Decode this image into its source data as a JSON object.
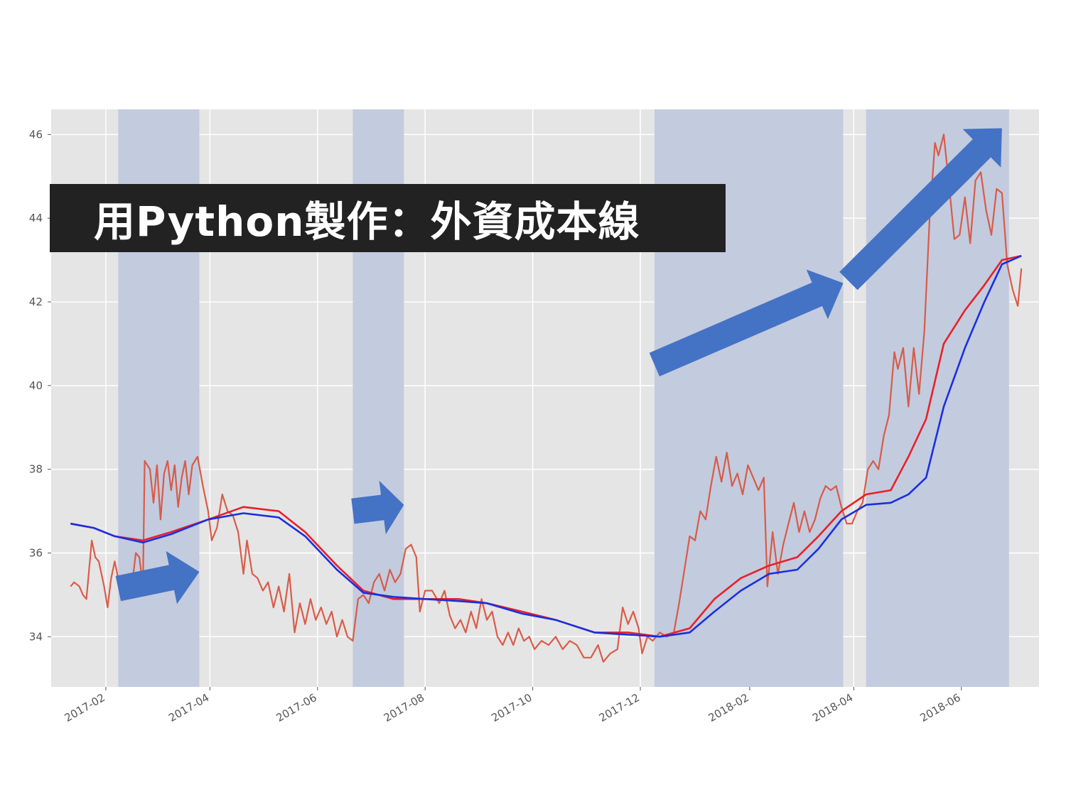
{
  "banner": {
    "title": "用Python製作：外資成本線"
  },
  "colors": {
    "plot_bg": "#e5e5e5",
    "grid": "#ffffff",
    "band": "#c3cbde",
    "arrow": "#4472c4",
    "price": "#d9543f",
    "price_dark": "#c0504d",
    "cost_red": "#e8202a",
    "cost_blue": "#1a2fe0",
    "banner_bg": "#222222",
    "banner_text": "#ffffff"
  },
  "chart_data": {
    "type": "line",
    "title": "",
    "xlabel": "",
    "ylabel": "",
    "xlim": [
      "2017-01-01",
      "2018-07-15"
    ],
    "ylim": [
      32.8,
      46.6
    ],
    "x_ticks": [
      "2017-02",
      "2017-04",
      "2017-06",
      "2017-08",
      "2017-10",
      "2017-12",
      "2018-02",
      "2018-04",
      "2018-06"
    ],
    "y_ticks": [
      34,
      36,
      38,
      40,
      42,
      44,
      46
    ],
    "grid": true,
    "legend": "none",
    "shaded_periods": [
      [
        "2017-02-08",
        "2017-03-26"
      ],
      [
        "2017-06-21",
        "2017-07-20"
      ],
      [
        "2017-12-09",
        "2018-03-26"
      ],
      [
        "2018-04-08",
        "2018-06-28"
      ]
    ],
    "arrows": [
      {
        "from": [
          "2017-02-08",
          35.15
        ],
        "to": [
          "2017-03-26",
          35.55
        ]
      },
      {
        "from": [
          "2017-06-21",
          37.0
        ],
        "to": [
          "2017-07-20",
          37.15
        ]
      },
      {
        "from": [
          "2017-12-09",
          40.5
        ],
        "to": [
          "2018-03-26",
          42.45
        ]
      },
      {
        "from": [
          "2018-03-29",
          42.5
        ],
        "to": [
          "2018-06-24",
          46.15
        ]
      }
    ],
    "series": [
      {
        "key": "price",
        "points": [
          [
            "2017-01-12",
            35.2
          ],
          [
            "2017-01-14",
            35.3
          ],
          [
            "2017-01-17",
            35.2
          ],
          [
            "2017-01-19",
            35.0
          ],
          [
            "2017-01-21",
            34.9
          ],
          [
            "2017-01-24",
            36.3
          ],
          [
            "2017-01-26",
            35.9
          ],
          [
            "2017-01-28",
            35.8
          ],
          [
            "2017-01-31",
            35.2
          ],
          [
            "2017-02-02",
            34.7
          ],
          [
            "2017-02-04",
            35.4
          ],
          [
            "2017-02-06",
            35.8
          ],
          [
            "2017-02-08",
            35.4
          ],
          [
            "2017-02-12",
            35.3
          ],
          [
            "2017-02-16",
            35.3
          ],
          [
            "2017-02-18",
            36.0
          ],
          [
            "2017-02-20",
            35.9
          ],
          [
            "2017-02-22",
            35.2
          ],
          [
            "2017-02-23",
            38.2
          ],
          [
            "2017-02-26",
            38.0
          ],
          [
            "2017-02-28",
            37.2
          ],
          [
            "2017-03-02",
            38.1
          ],
          [
            "2017-03-04",
            36.8
          ],
          [
            "2017-03-06",
            37.9
          ],
          [
            "2017-03-08",
            38.2
          ],
          [
            "2017-03-10",
            37.5
          ],
          [
            "2017-03-12",
            38.1
          ],
          [
            "2017-03-14",
            37.1
          ],
          [
            "2017-03-16",
            37.8
          ],
          [
            "2017-03-18",
            38.2
          ],
          [
            "2017-03-20",
            37.4
          ],
          [
            "2017-03-22",
            38.1
          ],
          [
            "2017-03-25",
            38.3
          ],
          [
            "2017-03-28",
            37.6
          ],
          [
            "2017-03-31",
            37.0
          ],
          [
            "2017-04-02",
            36.3
          ],
          [
            "2017-04-05",
            36.6
          ],
          [
            "2017-04-08",
            37.4
          ],
          [
            "2017-04-11",
            37.0
          ],
          [
            "2017-04-14",
            36.9
          ],
          [
            "2017-04-17",
            36.5
          ],
          [
            "2017-04-20",
            35.5
          ],
          [
            "2017-04-22",
            36.3
          ],
          [
            "2017-04-25",
            35.5
          ],
          [
            "2017-04-28",
            35.4
          ],
          [
            "2017-05-01",
            35.1
          ],
          [
            "2017-05-04",
            35.3
          ],
          [
            "2017-05-07",
            34.7
          ],
          [
            "2017-05-10",
            35.2
          ],
          [
            "2017-05-13",
            34.6
          ],
          [
            "2017-05-16",
            35.5
          ],
          [
            "2017-05-19",
            34.1
          ],
          [
            "2017-05-22",
            34.8
          ],
          [
            "2017-05-25",
            34.3
          ],
          [
            "2017-05-28",
            34.9
          ],
          [
            "2017-05-31",
            34.4
          ],
          [
            "2017-06-03",
            34.7
          ],
          [
            "2017-06-06",
            34.3
          ],
          [
            "2017-06-09",
            34.6
          ],
          [
            "2017-06-12",
            34.0
          ],
          [
            "2017-06-15",
            34.4
          ],
          [
            "2017-06-18",
            34.0
          ],
          [
            "2017-06-21",
            33.9
          ],
          [
            "2017-06-24",
            34.9
          ],
          [
            "2017-06-27",
            35.0
          ],
          [
            "2017-06-30",
            34.8
          ],
          [
            "2017-07-03",
            35.3
          ],
          [
            "2017-07-06",
            35.5
          ],
          [
            "2017-07-09",
            35.1
          ],
          [
            "2017-07-12",
            35.6
          ],
          [
            "2017-07-15",
            35.3
          ],
          [
            "2017-07-18",
            35.5
          ],
          [
            "2017-07-21",
            36.1
          ],
          [
            "2017-07-24",
            36.2
          ],
          [
            "2017-07-27",
            35.9
          ],
          [
            "2017-07-29",
            34.6
          ],
          [
            "2017-08-01",
            35.1
          ],
          [
            "2017-08-05",
            35.1
          ],
          [
            "2017-08-09",
            34.8
          ],
          [
            "2017-08-12",
            35.1
          ],
          [
            "2017-08-15",
            34.5
          ],
          [
            "2017-08-18",
            34.2
          ],
          [
            "2017-08-21",
            34.4
          ],
          [
            "2017-08-24",
            34.1
          ],
          [
            "2017-08-27",
            34.6
          ],
          [
            "2017-08-30",
            34.2
          ],
          [
            "2017-09-02",
            34.9
          ],
          [
            "2017-09-05",
            34.4
          ],
          [
            "2017-09-08",
            34.6
          ],
          [
            "2017-09-11",
            34.0
          ],
          [
            "2017-09-14",
            33.8
          ],
          [
            "2017-09-17",
            34.1
          ],
          [
            "2017-09-20",
            33.8
          ],
          [
            "2017-09-23",
            34.2
          ],
          [
            "2017-09-26",
            33.9
          ],
          [
            "2017-09-29",
            34.0
          ],
          [
            "2017-10-02",
            33.7
          ],
          [
            "2017-10-06",
            33.9
          ],
          [
            "2017-10-10",
            33.8
          ],
          [
            "2017-10-14",
            34.0
          ],
          [
            "2017-10-18",
            33.7
          ],
          [
            "2017-10-22",
            33.9
          ],
          [
            "2017-10-26",
            33.8
          ],
          [
            "2017-10-30",
            33.5
          ],
          [
            "2017-11-03",
            33.5
          ],
          [
            "2017-11-07",
            33.8
          ],
          [
            "2017-11-10",
            33.4
          ],
          [
            "2017-11-14",
            33.6
          ],
          [
            "2017-11-18",
            33.7
          ],
          [
            "2017-11-21",
            34.7
          ],
          [
            "2017-11-24",
            34.3
          ],
          [
            "2017-11-27",
            34.6
          ],
          [
            "2017-11-30",
            34.2
          ],
          [
            "2017-12-02",
            33.6
          ],
          [
            "2017-12-05",
            34.0
          ],
          [
            "2017-12-08",
            33.9
          ],
          [
            "2017-12-12",
            34.1
          ],
          [
            "2017-12-16",
            34.0
          ],
          [
            "2017-12-20",
            34.1
          ],
          [
            "2017-12-23",
            34.8
          ],
          [
            "2017-12-26",
            35.6
          ],
          [
            "2017-12-29",
            36.4
          ],
          [
            "2018-01-01",
            36.3
          ],
          [
            "2018-01-04",
            37.0
          ],
          [
            "2018-01-07",
            36.8
          ],
          [
            "2018-01-10",
            37.6
          ],
          [
            "2018-01-13",
            38.3
          ],
          [
            "2018-01-16",
            37.7
          ],
          [
            "2018-01-19",
            38.4
          ],
          [
            "2018-01-22",
            37.6
          ],
          [
            "2018-01-25",
            37.9
          ],
          [
            "2018-01-28",
            37.4
          ],
          [
            "2018-01-31",
            38.1
          ],
          [
            "2018-02-03",
            37.8
          ],
          [
            "2018-02-06",
            37.5
          ],
          [
            "2018-02-09",
            37.8
          ],
          [
            "2018-02-11",
            35.2
          ],
          [
            "2018-02-14",
            36.5
          ],
          [
            "2018-02-17",
            35.5
          ],
          [
            "2018-02-20",
            36.2
          ],
          [
            "2018-02-23",
            36.7
          ],
          [
            "2018-02-26",
            37.2
          ],
          [
            "2018-03-01",
            36.5
          ],
          [
            "2018-03-04",
            37.0
          ],
          [
            "2018-03-07",
            36.5
          ],
          [
            "2018-03-10",
            36.8
          ],
          [
            "2018-03-13",
            37.3
          ],
          [
            "2018-03-16",
            37.6
          ],
          [
            "2018-03-19",
            37.5
          ],
          [
            "2018-03-22",
            37.6
          ],
          [
            "2018-03-25",
            37.1
          ],
          [
            "2018-03-28",
            36.7
          ],
          [
            "2018-03-31",
            36.7
          ],
          [
            "2018-04-03",
            37.0
          ],
          [
            "2018-04-06",
            37.2
          ],
          [
            "2018-04-09",
            38.0
          ],
          [
            "2018-04-12",
            38.2
          ],
          [
            "2018-04-15",
            38.0
          ],
          [
            "2018-04-18",
            38.8
          ],
          [
            "2018-04-21",
            39.3
          ],
          [
            "2018-04-24",
            40.8
          ],
          [
            "2018-04-26",
            40.4
          ],
          [
            "2018-04-29",
            40.9
          ],
          [
            "2018-05-02",
            39.5
          ],
          [
            "2018-05-05",
            40.9
          ],
          [
            "2018-05-08",
            39.8
          ],
          [
            "2018-05-11",
            41.3
          ],
          [
            "2018-05-14",
            44.0
          ],
          [
            "2018-05-17",
            45.8
          ],
          [
            "2018-05-19",
            45.5
          ],
          [
            "2018-05-22",
            46.0
          ],
          [
            "2018-05-25",
            44.8
          ],
          [
            "2018-05-28",
            43.5
          ],
          [
            "2018-05-31",
            43.6
          ],
          [
            "2018-06-03",
            44.5
          ],
          [
            "2018-06-06",
            43.4
          ],
          [
            "2018-06-09",
            44.9
          ],
          [
            "2018-06-12",
            45.1
          ],
          [
            "2018-06-15",
            44.2
          ],
          [
            "2018-06-18",
            43.6
          ],
          [
            "2018-06-21",
            44.7
          ],
          [
            "2018-06-24",
            44.6
          ],
          [
            "2018-06-27",
            42.9
          ],
          [
            "2018-06-30",
            42.3
          ],
          [
            "2018-07-03",
            41.9
          ],
          [
            "2018-07-05",
            42.8
          ]
        ]
      },
      {
        "key": "cost_red",
        "points": [
          [
            "2017-01-12",
            36.7
          ],
          [
            "2017-01-25",
            36.6
          ],
          [
            "2017-02-06",
            36.4
          ],
          [
            "2017-02-22",
            36.3
          ],
          [
            "2017-03-10",
            36.5
          ],
          [
            "2017-03-31",
            36.8
          ],
          [
            "2017-04-20",
            37.1
          ],
          [
            "2017-05-10",
            37.0
          ],
          [
            "2017-05-25",
            36.5
          ],
          [
            "2017-06-12",
            35.7
          ],
          [
            "2017-06-27",
            35.1
          ],
          [
            "2017-07-14",
            34.9
          ],
          [
            "2017-08-01",
            34.9
          ],
          [
            "2017-08-20",
            34.9
          ],
          [
            "2017-09-05",
            34.8
          ],
          [
            "2017-09-25",
            34.6
          ],
          [
            "2017-10-14",
            34.4
          ],
          [
            "2017-11-05",
            34.1
          ],
          [
            "2017-11-24",
            34.1
          ],
          [
            "2017-12-12",
            34.0
          ],
          [
            "2017-12-29",
            34.2
          ],
          [
            "2018-01-12",
            34.9
          ],
          [
            "2018-01-27",
            35.4
          ],
          [
            "2018-02-12",
            35.7
          ],
          [
            "2018-02-28",
            35.9
          ],
          [
            "2018-03-12",
            36.4
          ],
          [
            "2018-03-25",
            37.0
          ],
          [
            "2018-04-08",
            37.4
          ],
          [
            "2018-04-22",
            37.5
          ],
          [
            "2018-05-02",
            38.3
          ],
          [
            "2018-05-12",
            39.2
          ],
          [
            "2018-05-22",
            41.0
          ],
          [
            "2018-06-03",
            41.8
          ],
          [
            "2018-06-14",
            42.4
          ],
          [
            "2018-06-24",
            43.0
          ],
          [
            "2018-07-05",
            43.1
          ]
        ]
      },
      {
        "key": "cost_blue",
        "points": [
          [
            "2017-01-12",
            36.7
          ],
          [
            "2017-01-25",
            36.6
          ],
          [
            "2017-02-06",
            36.4
          ],
          [
            "2017-02-22",
            36.25
          ],
          [
            "2017-03-10",
            36.45
          ],
          [
            "2017-03-31",
            36.8
          ],
          [
            "2017-04-20",
            36.95
          ],
          [
            "2017-05-10",
            36.85
          ],
          [
            "2017-05-25",
            36.4
          ],
          [
            "2017-06-12",
            35.6
          ],
          [
            "2017-06-27",
            35.05
          ],
          [
            "2017-07-14",
            34.95
          ],
          [
            "2017-08-01",
            34.9
          ],
          [
            "2017-08-20",
            34.85
          ],
          [
            "2017-09-05",
            34.8
          ],
          [
            "2017-09-25",
            34.55
          ],
          [
            "2017-10-14",
            34.4
          ],
          [
            "2017-11-05",
            34.1
          ],
          [
            "2017-11-24",
            34.05
          ],
          [
            "2017-12-12",
            34.0
          ],
          [
            "2017-12-29",
            34.1
          ],
          [
            "2018-01-12",
            34.6
          ],
          [
            "2018-01-27",
            35.1
          ],
          [
            "2018-02-12",
            35.5
          ],
          [
            "2018-02-28",
            35.6
          ],
          [
            "2018-03-12",
            36.1
          ],
          [
            "2018-03-25",
            36.8
          ],
          [
            "2018-04-08",
            37.15
          ],
          [
            "2018-04-22",
            37.2
          ],
          [
            "2018-05-02",
            37.4
          ],
          [
            "2018-05-12",
            37.8
          ],
          [
            "2018-05-22",
            39.5
          ],
          [
            "2018-06-03",
            40.9
          ],
          [
            "2018-06-14",
            42.0
          ],
          [
            "2018-06-24",
            42.9
          ],
          [
            "2018-07-05",
            43.1
          ]
        ]
      }
    ]
  }
}
